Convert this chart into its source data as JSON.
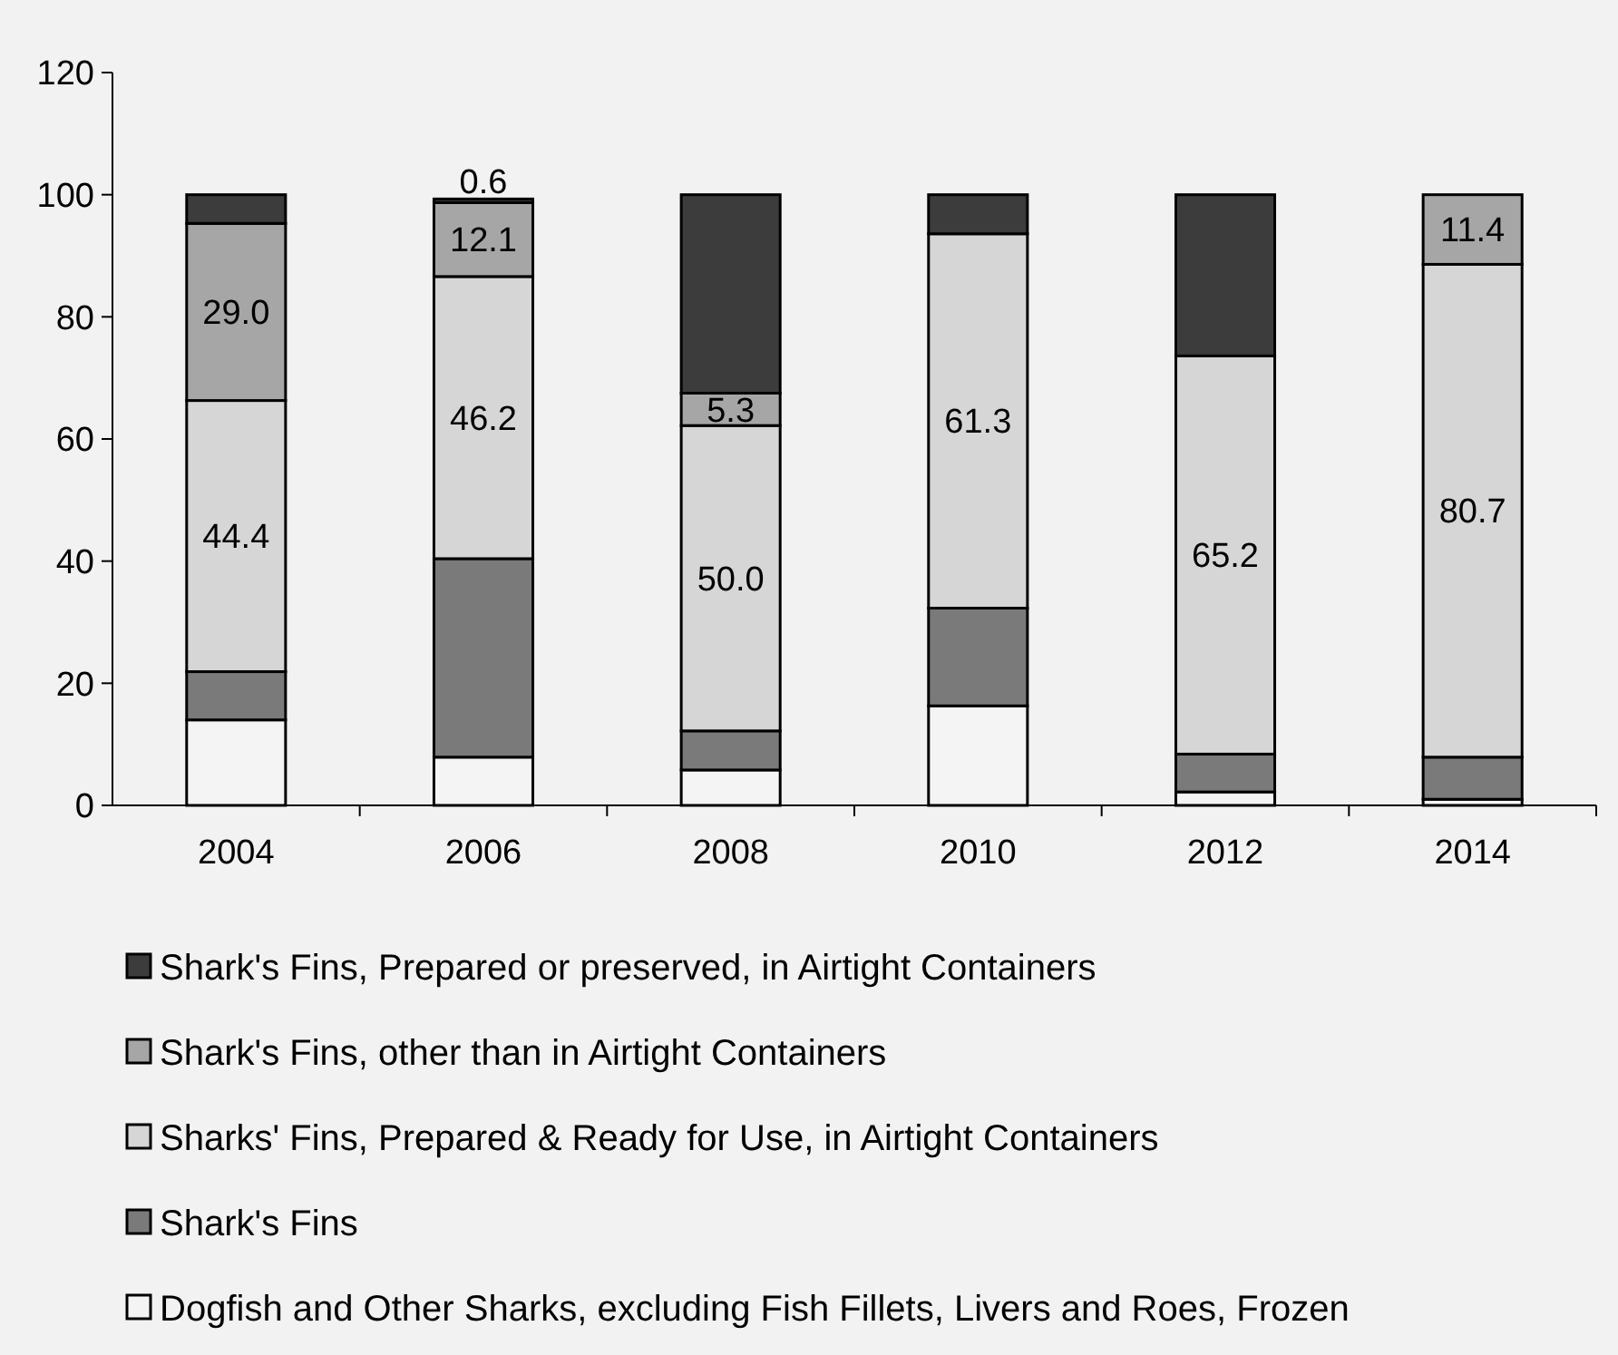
{
  "chart_data": {
    "type": "bar",
    "stacked": true,
    "categories": [
      "2004",
      "2006",
      "2008",
      "2010",
      "2012",
      "2014"
    ],
    "series": [
      {
        "name": "Dogfish and Other Sharks, excluding Fish Fillets, Livers and Roes, Frozen",
        "color": "#f4f4f4",
        "values": [
          14.0,
          7.9,
          5.8,
          16.3,
          2.2,
          1.0
        ]
      },
      {
        "name": "Shark's Fins",
        "color": "#7a7a7a",
        "values": [
          7.9,
          32.5,
          6.4,
          16.0,
          6.2,
          6.9
        ]
      },
      {
        "name": "Sharks' Fins, Prepared & Ready for Use, in Airtight Containers",
        "color": "#d6d6d6",
        "values": [
          44.4,
          46.2,
          50.0,
          61.3,
          65.2,
          80.7
        ],
        "value_labels": [
          "44.4",
          "46.2",
          "50.0",
          "61.3",
          "65.2",
          "80.7"
        ]
      },
      {
        "name": "Shark's Fins, other than in Airtight Containers",
        "color": "#a6a6a6",
        "values": [
          29.0,
          12.1,
          5.3,
          null,
          null,
          11.4
        ],
        "value_labels": [
          "29.0",
          "12.1",
          "5.3",
          null,
          null,
          "11.4"
        ]
      },
      {
        "name": "Shark's Fins, Prepared or preserved, in Airtight Containers",
        "color": "#3c3c3c",
        "values": [
          4.7,
          0.6,
          32.5,
          6.4,
          26.4,
          null
        ],
        "value_labels": [
          null,
          "0.6",
          null,
          null,
          null,
          null
        ]
      }
    ],
    "ylim": [
      0,
      120
    ],
    "yticks": [
      0,
      20,
      40,
      60,
      80,
      100,
      120
    ],
    "grid": false,
    "legend": "bottom"
  }
}
